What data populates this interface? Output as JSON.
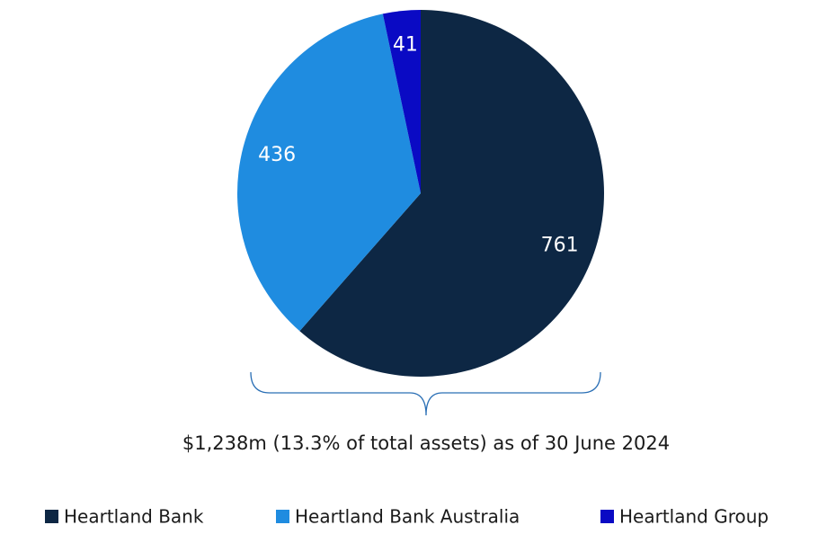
{
  "chart_data": {
    "type": "pie",
    "categories": [
      "Heartland Bank",
      "Heartland Bank Australia",
      "Heartland Group"
    ],
    "values": [
      761,
      436,
      41
    ],
    "colors": [
      "#0d2744",
      "#1f8ce0",
      "#0a0ac4"
    ],
    "caption": "$1,238m (13.3% of total assets) as of 30 June 2024",
    "legend": "bottom"
  }
}
